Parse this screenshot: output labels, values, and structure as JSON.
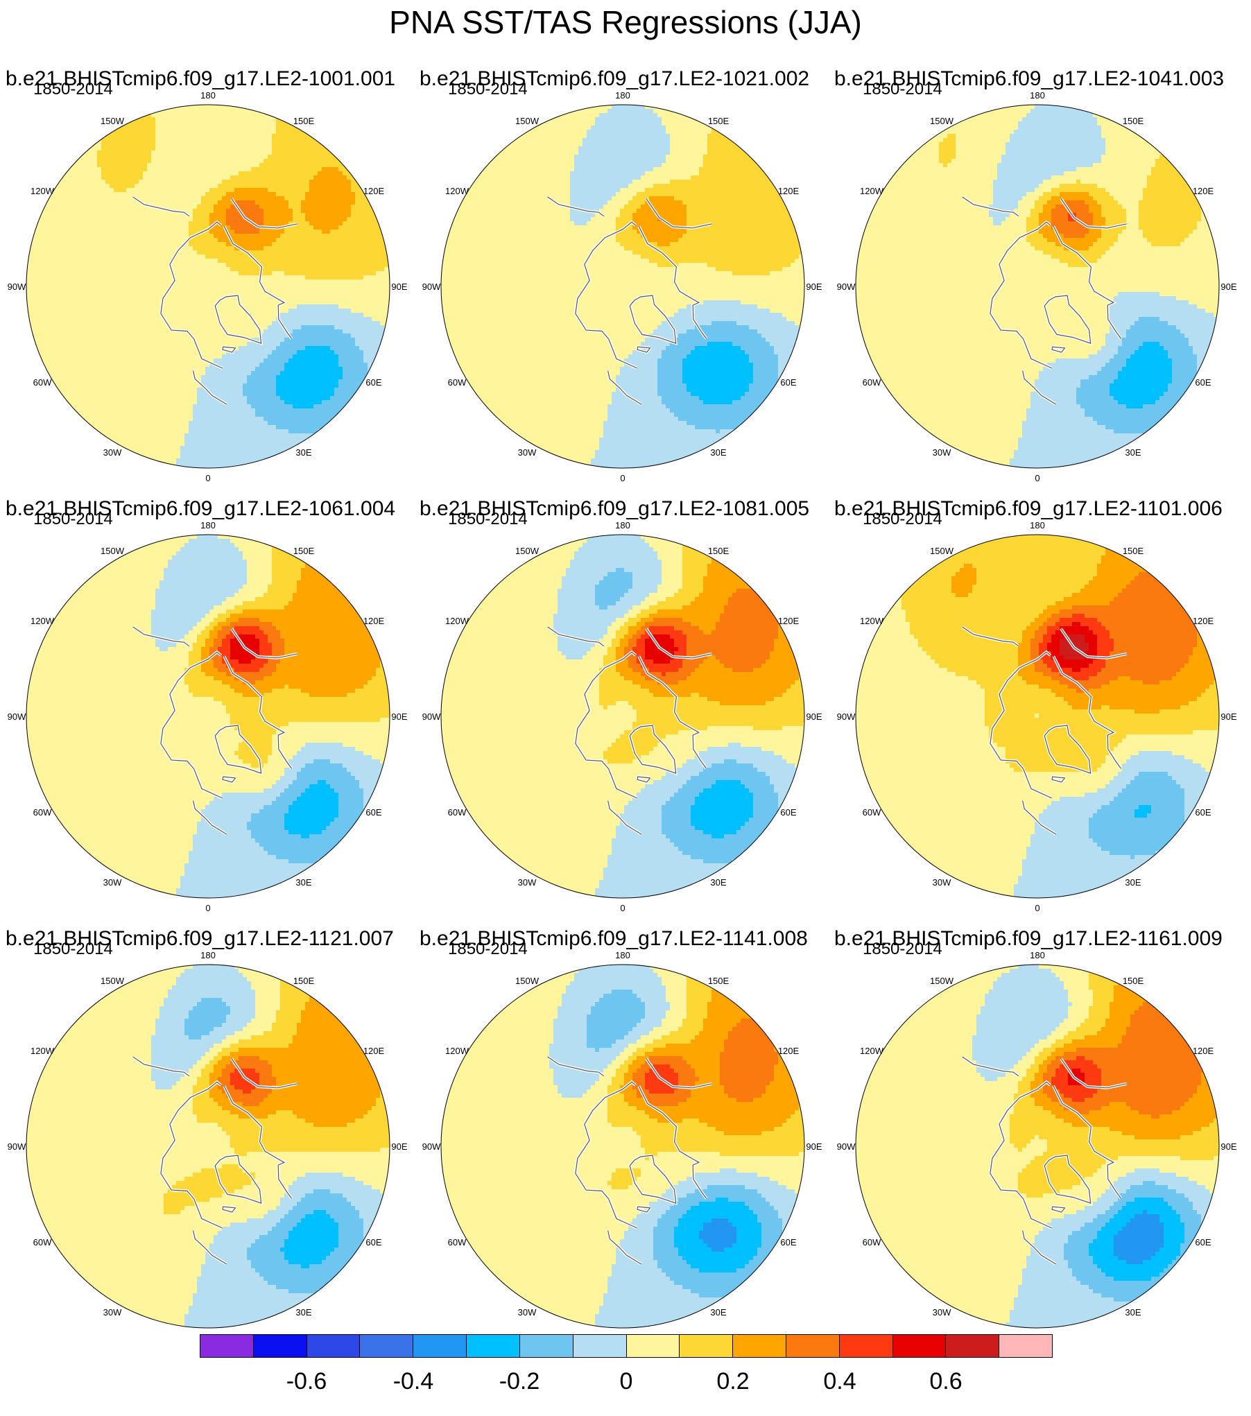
{
  "title": "PNA SST/TAS Regressions (JJA)",
  "period_label": "1850-2014",
  "longitude_labels": [
    "180",
    "150E",
    "120E",
    "90E",
    "60E",
    "30E",
    "0",
    "30W",
    "60W",
    "90W",
    "120W",
    "150W"
  ],
  "panels": [
    {
      "title": "b.e21.BHISTcmip6.f09_g17.LE2-1001.001"
    },
    {
      "title": "b.e21.BHISTcmip6.f09_g17.LE2-1021.002"
    },
    {
      "title": "b.e21.BHISTcmip6.f09_g17.LE2-1041.003"
    },
    {
      "title": "b.e21.BHISTcmip6.f09_g17.LE2-1061.004"
    },
    {
      "title": "b.e21.BHISTcmip6.f09_g17.LE2-1081.005"
    },
    {
      "title": "b.e21.BHISTcmip6.f09_g17.LE2-1101.006"
    },
    {
      "title": "b.e21.BHISTcmip6.f09_g17.LE2-1121.007"
    },
    {
      "title": "b.e21.BHISTcmip6.f09_g17.LE2-1141.008"
    },
    {
      "title": "b.e21.BHISTcmip6.f09_g17.LE2-1161.009"
    }
  ],
  "colorbar": {
    "colors": [
      "#8a2be2",
      "#0a10f0",
      "#2d48e6",
      "#3a72ea",
      "#2196f3",
      "#00bfff",
      "#6ec6f0",
      "#b5def2",
      "#fff59d",
      "#fdd835",
      "#ffa500",
      "#fb7a10",
      "#ff3a10",
      "#e60000",
      "#cc1c1c",
      "#ffb6b6"
    ],
    "tick_labels": [
      "-0.6",
      "-0.4",
      "-0.2",
      "0",
      "0.2",
      "0.4",
      "0.6"
    ]
  },
  "chart_data": {
    "type": "heatmap",
    "title": "PNA SST/TAS Regressions (JJA)",
    "projection": "north polar stereographic",
    "period": "1850-2014",
    "levels": [
      -0.7,
      -0.6,
      -0.5,
      -0.4,
      -0.3,
      -0.2,
      -0.1,
      0,
      0.1,
      0.2,
      0.3,
      0.4,
      0.5,
      0.6,
      0.7
    ],
    "features": [
      {
        "name": "pos1",
        "lon": -135,
        "lat": 38,
        "ext": 30
      },
      {
        "name": "neg1",
        "lon": -175,
        "lat": 45,
        "ext": 20
      },
      {
        "name": "pos2",
        "lon": 160,
        "lat": 36,
        "ext": 22
      },
      {
        "name": "pos3",
        "lon": -155,
        "lat": 60,
        "ext": 10
      },
      {
        "name": "neg2",
        "lon": -50,
        "lat": 40,
        "ext": 16
      },
      {
        "name": "pos4",
        "lon": -45,
        "lat": 56,
        "ext": 9
      },
      {
        "name": "pos5",
        "lon": 30,
        "lat": 62,
        "ext": 14
      }
    ],
    "ensemble_members": [
      {
        "member": "LE2-1001.001",
        "amplitudes": {
          "pos1": 0.25,
          "neg1": -0.27,
          "pos2": 0.18,
          "pos3": 0.3,
          "neg2": -0.3,
          "pos4": 0.05,
          "pos5": 0.05
        }
      },
      {
        "member": "LE2-1021.002",
        "amplitudes": {
          "pos1": 0.22,
          "neg1": -0.3,
          "pos2": 0.12,
          "pos3": 0.3,
          "neg2": -0.28,
          "pos4": -0.05,
          "pos5": 0.05
        }
      },
      {
        "member": "LE2-1041.003",
        "amplitudes": {
          "pos1": 0.15,
          "neg1": -0.32,
          "pos2": 0.18,
          "pos3": 0.45,
          "neg2": -0.3,
          "pos4": 0.15,
          "pos5": 0.08
        }
      },
      {
        "member": "LE2-1061.004",
        "amplitudes": {
          "pos1": 0.35,
          "neg1": -0.42,
          "pos2": 0.15,
          "pos3": 0.55,
          "neg2": -0.3,
          "pos4": 0.15,
          "pos5": 0.05
        }
      },
      {
        "member": "LE2-1081.005",
        "amplitudes": {
          "pos1": 0.4,
          "neg1": -0.45,
          "pos2": 0.12,
          "pos3": 0.55,
          "neg2": -0.3,
          "pos4": 0.02,
          "pos5": 0.08
        }
      },
      {
        "member": "LE2-1101.006",
        "amplitudes": {
          "pos1": 0.42,
          "neg1": -0.35,
          "pos2": 0.28,
          "pos3": 0.5,
          "neg2": -0.25,
          "pos4": 0.12,
          "pos5": 0.08
        }
      },
      {
        "member": "LE2-1121.007",
        "amplitudes": {
          "pos1": 0.35,
          "neg1": -0.48,
          "pos2": 0.18,
          "pos3": 0.45,
          "neg2": -0.3,
          "pos4": 0.12,
          "pos5": 0.1
        }
      },
      {
        "member": "LE2-1141.008",
        "amplitudes": {
          "pos1": 0.4,
          "neg1": -0.48,
          "pos2": 0.12,
          "pos3": 0.45,
          "neg2": -0.35,
          "pos4": -0.05,
          "pos5": 0.08
        }
      },
      {
        "member": "LE2-1161.009",
        "amplitudes": {
          "pos1": 0.45,
          "neg1": -0.45,
          "pos2": 0.12,
          "pos3": 0.45,
          "neg2": -0.42,
          "pos4": 0.1,
          "pos5": 0.08
        }
      }
    ]
  }
}
